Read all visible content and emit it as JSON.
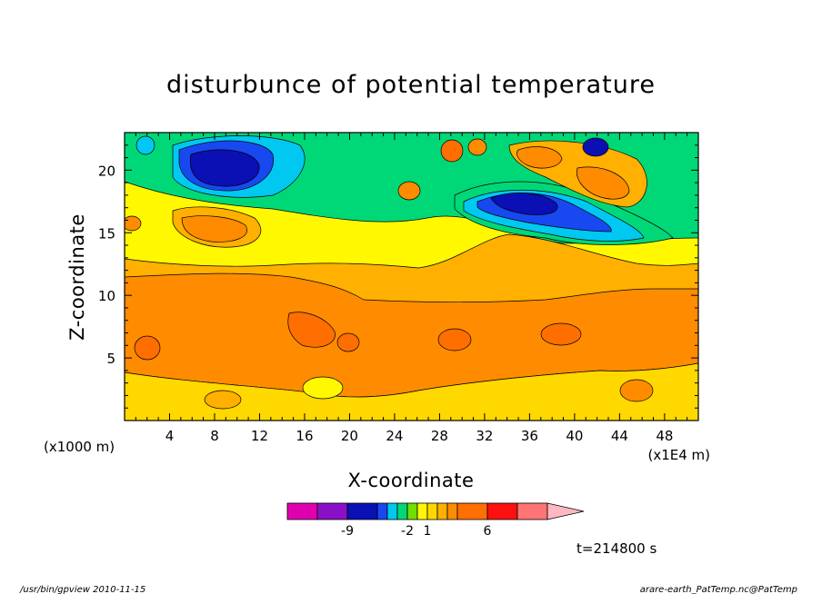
{
  "chart_data": {
    "type": "heatmap",
    "title": "disturbunce of potential temperature",
    "xlabel": "X-coordinate",
    "ylabel": "Z-coordinate",
    "x_unit_label": "(x1E4 m)",
    "y_unit_label": "(x1000 m)",
    "x_ticks": [
      "4",
      "8",
      "12",
      "16",
      "20",
      "24",
      "28",
      "32",
      "36",
      "40",
      "44",
      "48"
    ],
    "y_ticks": [
      "5",
      "10",
      "15",
      "20"
    ],
    "xlim": [
      0,
      51
    ],
    "ylim": [
      0,
      23
    ],
    "colorbar": {
      "labels": [
        "-9",
        "-2",
        "1",
        "6"
      ],
      "colors": [
        "#e000b0",
        "#8a10c8",
        "#0a10b4",
        "#1848f0",
        "#00c8f0",
        "#00d878",
        "#70e000",
        "#fff800",
        "#ffd800",
        "#ffb000",
        "#ff8c00",
        "#ff6e00",
        "#ff1010",
        "#ff7474",
        "#ffb8c0"
      ]
    },
    "background_level_colors": {
      "lower_layer": "#ff8c00",
      "middle_layer": "#ffb000",
      "upper_layer": "#fff800",
      "top_layer": "#00d878",
      "min_cores": "#0a10b4"
    }
  },
  "footer": {
    "time_label": "t=214800 s",
    "left": "/usr/bin/gpview   2010-11-15",
    "right": "arare-earth_PatTemp.nc@PatTemp"
  }
}
